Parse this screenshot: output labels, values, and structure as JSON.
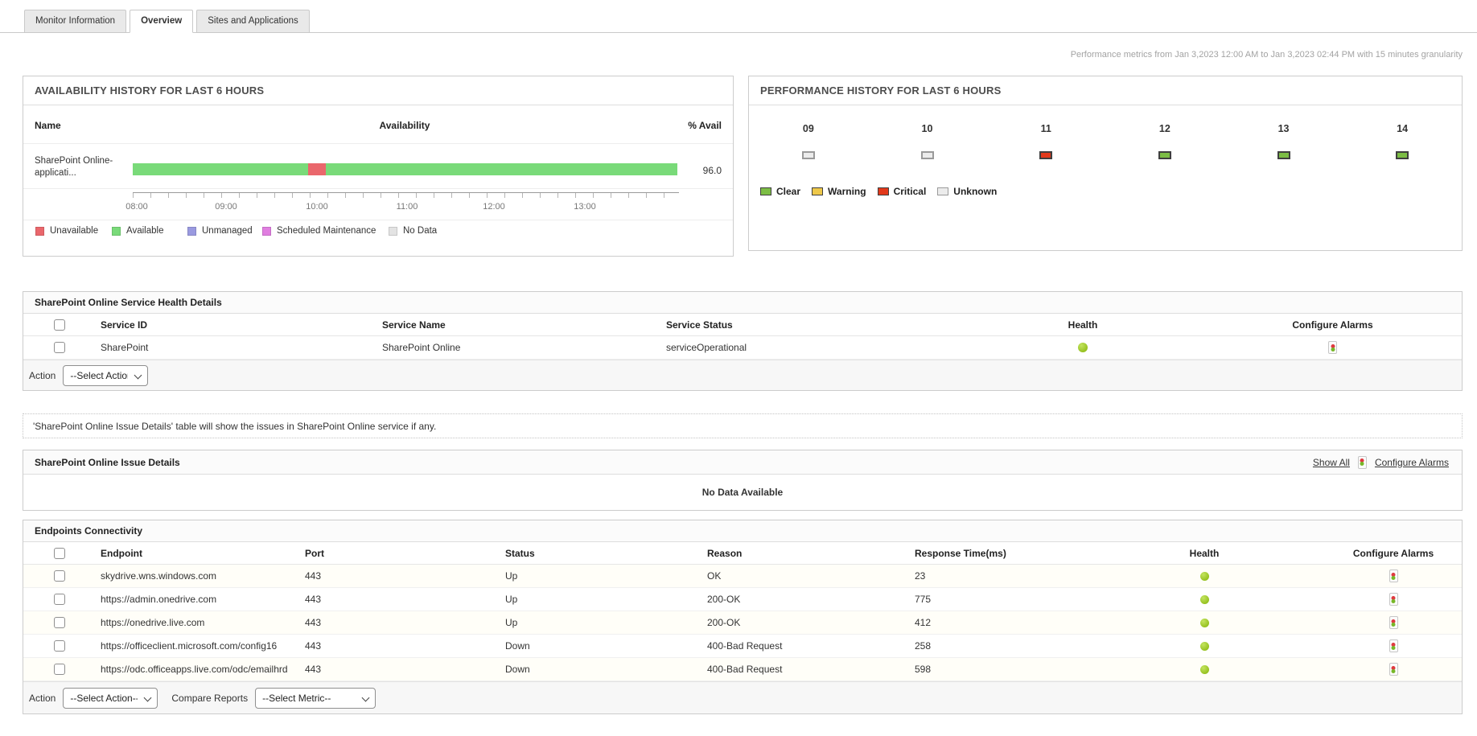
{
  "tabs": [
    {
      "label": "Monitor Information",
      "active": false
    },
    {
      "label": "Overview",
      "active": true
    },
    {
      "label": "Sites and Applications",
      "active": false
    }
  ],
  "header_note": "Performance metrics from Jan 3,2023 12:00 AM to Jan 3,2023 02:44 PM with 15 minutes granularity",
  "availability": {
    "title": "AVAILABILITY HISTORY FOR LAST 6 HOURS",
    "columns": {
      "name": "Name",
      "availability": "Availability",
      "avail": "% Avail"
    },
    "monitor": {
      "name_line1": "SharePoint Online-",
      "name_line2": "applicati...",
      "avail_pct": "96.0"
    },
    "bar": {
      "outage_left_pct": 32.2,
      "outage_width_pct": 3.3
    },
    "axis_labels": [
      "08:00",
      "09:00",
      "10:00",
      "11:00",
      "12:00",
      "13:00"
    ],
    "legend": [
      {
        "label": "Unavailable",
        "color": "#ea676c"
      },
      {
        "label": "Available",
        "color": "#79da79"
      },
      {
        "label": "Unmanaged",
        "color": "#9a9ae0"
      },
      {
        "label": "Scheduled Maintenance",
        "color": "#e07ee0"
      },
      {
        "label": "No Data",
        "color": "#e3e3e3"
      }
    ]
  },
  "performance": {
    "title": "PERFORMANCE HISTORY FOR LAST 6 HOURS",
    "hours": [
      {
        "label": "09",
        "status": "unknown"
      },
      {
        "label": "10",
        "status": "unknown"
      },
      {
        "label": "11",
        "status": "critical"
      },
      {
        "label": "12",
        "status": "clear"
      },
      {
        "label": "13",
        "status": "clear"
      },
      {
        "label": "14",
        "status": "clear"
      }
    ],
    "legend": [
      {
        "label": "Clear",
        "status": "clear",
        "color": "#7cbd45"
      },
      {
        "label": "Warning",
        "status": "warning",
        "color": "#eec84a"
      },
      {
        "label": "Critical",
        "status": "critical",
        "color": "#e2391b"
      },
      {
        "label": "Unknown",
        "status": "unknown",
        "color": "#ececec"
      }
    ]
  },
  "service_health": {
    "title": "SharePoint Online Service Health Details",
    "columns": [
      "Service ID",
      "Service Name",
      "Service Status",
      "Health",
      "Configure Alarms"
    ],
    "rows": [
      {
        "service_id": "SharePoint",
        "service_name": "SharePoint Online",
        "service_status": "serviceOperational",
        "health": "up"
      }
    ],
    "action_label": "Action",
    "action_options": [
      "--Select Action--"
    ]
  },
  "issue_note": "'SharePoint Online Issue Details' table will show the issues in SharePoint Online service if any.",
  "issue_details": {
    "title": "SharePoint Online Issue Details",
    "show_all_label": "Show All",
    "configure_alarms_label": "Configure Alarms",
    "empty_text": "No Data Available"
  },
  "endpoints": {
    "title": "Endpoints Connectivity",
    "columns": [
      "Endpoint",
      "Port",
      "Status",
      "Reason",
      "Response Time(ms)",
      "Health",
      "Configure Alarms"
    ],
    "rows": [
      {
        "endpoint": "skydrive.wns.windows.com",
        "port": "443",
        "status": "Up",
        "reason": "OK",
        "response_ms": "23",
        "health": "up"
      },
      {
        "endpoint": "https://admin.onedrive.com",
        "port": "443",
        "status": "Up",
        "reason": "200-OK",
        "response_ms": "775",
        "health": "up"
      },
      {
        "endpoint": "https://onedrive.live.com",
        "port": "443",
        "status": "Up",
        "reason": "200-OK",
        "response_ms": "412",
        "health": "up"
      },
      {
        "endpoint": "https://officeclient.microsoft.com/config16",
        "port": "443",
        "status": "Down",
        "reason": "400-Bad Request",
        "response_ms": "258",
        "health": "up"
      },
      {
        "endpoint": "https://odc.officeapps.live.com/odc/emailhrd",
        "port": "443",
        "status": "Down",
        "reason": "400-Bad Request",
        "response_ms": "598",
        "health": "up"
      }
    ],
    "action_label": "Action",
    "action_options": [
      "--Select Action--"
    ],
    "compare_label": "Compare Reports",
    "compare_options": [
      "--Select Metric--"
    ]
  },
  "colors": {
    "health_dot": "#8bbd12",
    "available": "#79da79",
    "unavailable": "#ea676c",
    "clear": "#7cbd45",
    "critical": "#e2391b",
    "warning": "#eec84a",
    "unknown": "#ececec"
  }
}
